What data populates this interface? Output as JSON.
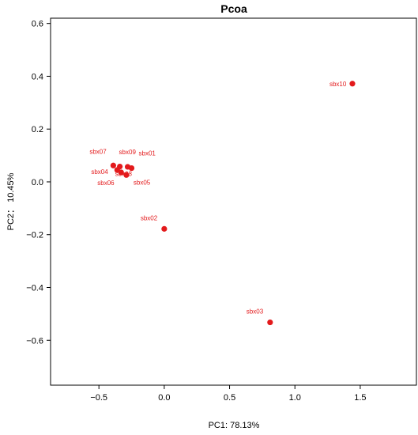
{
  "chart_data": {
    "type": "scatter",
    "title": "Pcoa",
    "xlabel": "PC1: 78.13%",
    "ylabel": "PC2： 10.45%",
    "xlim": [
      -0.87,
      1.93
    ],
    "ylim": [
      -0.77,
      0.62
    ],
    "xticks": [
      -0.5,
      0.0,
      0.5,
      1.0,
      1.5
    ],
    "xtick_labels": [
      "−0.5",
      "0.0",
      "0.5",
      "1.0",
      "1.5"
    ],
    "yticks": [
      -0.6,
      -0.4,
      -0.2,
      0.0,
      0.2,
      0.4,
      0.6
    ],
    "ytick_labels": [
      "−0.6",
      "−0.4",
      "−0.2",
      "0.0",
      "0.2",
      "0.4",
      "0.6"
    ],
    "grid": false,
    "legend": "none",
    "point_color": "#e31a1c",
    "points": [
      {
        "label": "sbx01",
        "x": -0.25,
        "y": 0.052
      },
      {
        "label": "sbx02",
        "x": 0.0,
        "y": -0.178
      },
      {
        "label": "sbx03",
        "x": 0.81,
        "y": -0.532
      },
      {
        "label": "sbx04",
        "x": -0.36,
        "y": 0.045
      },
      {
        "label": "sbx05",
        "x": -0.29,
        "y": 0.026
      },
      {
        "label": "sbx06",
        "x": -0.33,
        "y": 0.036
      },
      {
        "label": "sbx07",
        "x": -0.39,
        "y": 0.062
      },
      {
        "label": "sbx08",
        "x": -0.34,
        "y": 0.058
      },
      {
        "label": "sbx09",
        "x": -0.28,
        "y": 0.057
      },
      {
        "label": "sbx10",
        "x": 1.44,
        "y": 0.372
      }
    ]
  }
}
